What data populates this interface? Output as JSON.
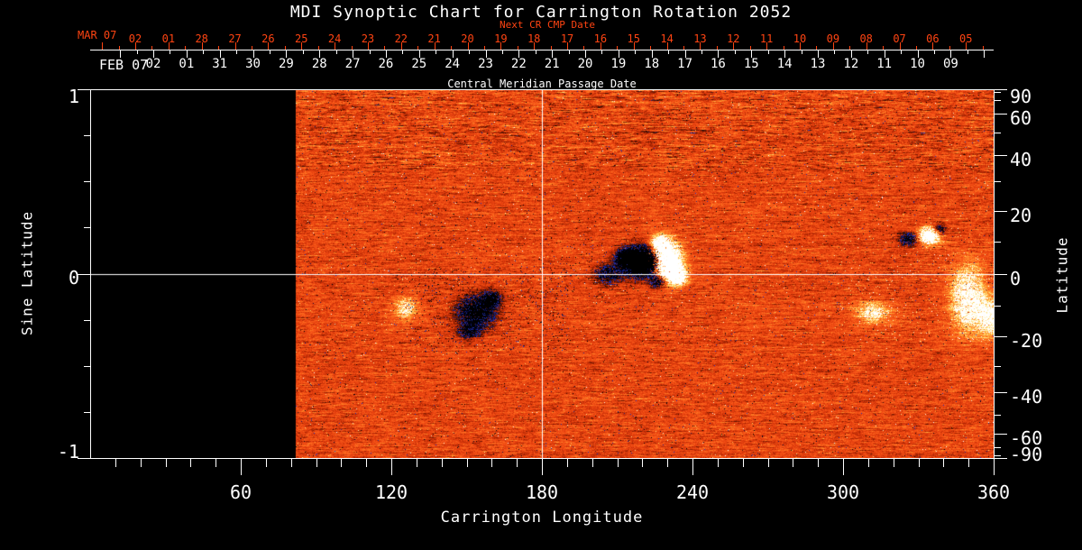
{
  "title": "MDI Synoptic Chart for Carrington Rotation 2052",
  "colors": {
    "background": "#000000",
    "foreground": "#ffffff",
    "accent_red": "#ff4412"
  },
  "top_axis": {
    "next_label": "Next CR CMP Date",
    "next_month_header": "MAR 07",
    "next_days": [
      "02",
      "01",
      "28",
      "27",
      "26",
      "25",
      "24",
      "23",
      "22",
      "21",
      "20",
      "19",
      "18",
      "17",
      "16",
      "15",
      "14",
      "13",
      "12",
      "11",
      "10",
      "09",
      "08",
      "07",
      "06",
      "05"
    ],
    "cmp_month_header": "FEB 07",
    "cmp_days": [
      "02",
      "01",
      "31",
      "30",
      "29",
      "28",
      "27",
      "26",
      "25",
      "24",
      "23",
      "22",
      "21",
      "20",
      "19",
      "18",
      "17",
      "16",
      "15",
      "14",
      "13",
      "12",
      "11",
      "10",
      "09"
    ],
    "caption": "Central Meridian Passage Date"
  },
  "left_axis": {
    "title": "Sine Latitude",
    "labels": [
      "1",
      "0",
      "-1"
    ],
    "label_values": [
      1,
      0,
      -1
    ]
  },
  "right_axis": {
    "title": "Latitude",
    "labels": [
      "90",
      "60",
      "40",
      "20",
      "0",
      "-20",
      "-40",
      "-60",
      "-90"
    ],
    "label_values": [
      90,
      60,
      40,
      20,
      0,
      -20,
      -40,
      -60,
      -90
    ]
  },
  "bottom_axis": {
    "title": "Carrington Longitude",
    "labels": [
      "60",
      "120",
      "180",
      "240",
      "300",
      "360"
    ],
    "label_values": [
      60,
      120,
      180,
      240,
      300,
      360
    ]
  },
  "chart_data": {
    "type": "heatmap",
    "title": "MDI Synoptic Chart for Carrington Rotation 2052",
    "xlabel": "Carrington Longitude",
    "ylabel_left": "Sine Latitude",
    "ylabel_right": "Latitude",
    "x_range": [
      0,
      360
    ],
    "x_ticks_major": [
      60,
      120,
      180,
      240,
      300,
      360
    ],
    "x_tick_minor_step_deg": 10,
    "y_range_sine": [
      -1,
      1
    ],
    "y_left_tick_values_sine": [
      1,
      0.75,
      0.5,
      0.25,
      0,
      -0.25,
      -0.5,
      -0.75,
      -1
    ],
    "y_left_labeled_values": [
      1,
      0,
      -1
    ],
    "y_right_tick_values_deg": [
      90,
      80,
      70,
      60,
      50,
      40,
      30,
      20,
      10,
      0,
      -10,
      -20,
      -30,
      -40,
      -50,
      -60,
      -70,
      -80,
      -90
    ],
    "y_right_labeled_values_deg": [
      90,
      60,
      40,
      20,
      0,
      -20,
      -40,
      -60,
      -90
    ],
    "grid_crosshair": {
      "longitude": 180,
      "sine_latitude": 0
    },
    "top_axis_next_cr_cmp_dates": {
      "month_header": "MAR 07",
      "days": [
        "02",
        "01",
        "28",
        "27",
        "26",
        "25",
        "24",
        "23",
        "22",
        "21",
        "20",
        "19",
        "18",
        "17",
        "16",
        "15",
        "14",
        "13",
        "12",
        "11",
        "10",
        "09",
        "08",
        "07",
        "06",
        "05"
      ]
    },
    "top_axis_cmp_dates": {
      "month_header": "FEB 07",
      "days": [
        "02",
        "01",
        "31",
        "30",
        "29",
        "28",
        "27",
        "26",
        "25",
        "24",
        "23",
        "22",
        "21",
        "20",
        "19",
        "18",
        "17",
        "16",
        "15",
        "14",
        "13",
        "12",
        "11",
        "10",
        "09"
      ]
    },
    "data_coverage": {
      "longitude_start": 82,
      "longitude_end": 360,
      "note": "region below ~82 deg longitude is black (rotation not yet observed)"
    },
    "colormap": "black/blue (negative field) -> red-orange (quiet) -> yellow/white (positive field)",
    "features": [
      {
        "name": "bipolar-active-region-main",
        "longitude": 220,
        "sine_latitude": 0.07,
        "description": "strong black negative core with bright white plage to its east"
      },
      {
        "name": "small-active-region",
        "longitude": 334,
        "sine_latitude": 0.2,
        "description": "compact bright plage with dark negative specks"
      },
      {
        "name": "dispersed-negative-region",
        "longitude": 154,
        "sine_latitude": -0.2,
        "description": "scattered dark blue negative speckle field"
      },
      {
        "name": "bright-plage-near-east-edge",
        "longitude": 350,
        "sine_latitude": -0.15,
        "description": "diffuse bright positive region along right edge"
      },
      {
        "name": "bright-scatter",
        "longitude": 312,
        "sine_latitude": -0.2,
        "description": "weak bright positive scatter"
      }
    ]
  }
}
